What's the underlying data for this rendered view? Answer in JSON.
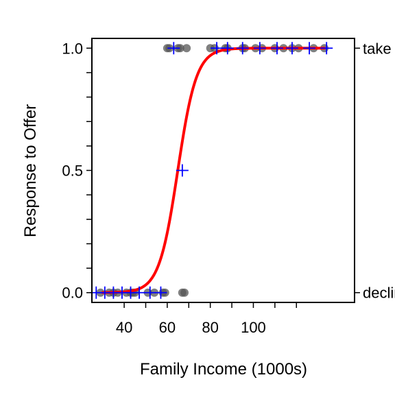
{
  "chart_data": {
    "type": "scatter",
    "xlabel": "Family Income (1000s)",
    "ylabel": "Response to Offer",
    "xlim": [
      25,
      147
    ],
    "ylim": [
      -0.04,
      1.04
    ],
    "x_ticks": [
      40,
      50,
      60,
      70,
      80,
      90,
      100,
      110,
      120
    ],
    "x_tick_labels": [
      {
        "value": 40,
        "label": "40"
      },
      {
        "value": 60,
        "label": "60"
      },
      {
        "value": 80,
        "label": "80"
      },
      {
        "value": 100,
        "label": "100"
      }
    ],
    "y_ticks": [
      0.0,
      0.1,
      0.2,
      0.3,
      0.4,
      0.5,
      0.6,
      0.7,
      0.8,
      0.9,
      1.0
    ],
    "y_tick_labels": [
      {
        "value": 0.0,
        "label": "0.0"
      },
      {
        "value": 0.5,
        "label": "0.5"
      },
      {
        "value": 1.0,
        "label": "1.0"
      }
    ],
    "right_labels": [
      {
        "value": 1.0,
        "label": "take"
      },
      {
        "value": 0.0,
        "label": "decline"
      }
    ],
    "points": [
      {
        "x": 29,
        "y": 0
      },
      {
        "x": 33,
        "y": 0
      },
      {
        "x": 35,
        "y": 0
      },
      {
        "x": 37,
        "y": 0
      },
      {
        "x": 41,
        "y": 0
      },
      {
        "x": 43,
        "y": 0
      },
      {
        "x": 44,
        "y": 0
      },
      {
        "x": 45,
        "y": 0
      },
      {
        "x": 51,
        "y": 0
      },
      {
        "x": 54,
        "y": 0
      },
      {
        "x": 58,
        "y": 0
      },
      {
        "x": 59,
        "y": 0
      },
      {
        "x": 67,
        "y": 0
      },
      {
        "x": 68,
        "y": 0
      },
      {
        "x": 60,
        "y": 1
      },
      {
        "x": 61,
        "y": 1
      },
      {
        "x": 65,
        "y": 1
      },
      {
        "x": 66,
        "y": 1
      },
      {
        "x": 69,
        "y": 1
      },
      {
        "x": 80,
        "y": 1
      },
      {
        "x": 82,
        "y": 1
      },
      {
        "x": 87,
        "y": 1
      },
      {
        "x": 88,
        "y": 1
      },
      {
        "x": 95,
        "y": 1
      },
      {
        "x": 96,
        "y": 1
      },
      {
        "x": 101,
        "y": 1
      },
      {
        "x": 104,
        "y": 1
      },
      {
        "x": 110,
        "y": 1
      },
      {
        "x": 114,
        "y": 1
      },
      {
        "x": 118,
        "y": 1
      },
      {
        "x": 121,
        "y": 1
      },
      {
        "x": 128,
        "y": 1
      },
      {
        "x": 133,
        "y": 1
      }
    ],
    "crosses": [
      {
        "x": 27,
        "y": 0
      },
      {
        "x": 31,
        "y": 0
      },
      {
        "x": 35,
        "y": 0
      },
      {
        "x": 39,
        "y": 0
      },
      {
        "x": 43,
        "y": 0
      },
      {
        "x": 47,
        "y": 0
      },
      {
        "x": 52,
        "y": 0
      },
      {
        "x": 57,
        "y": 0
      },
      {
        "x": 67,
        "y": 0.5
      },
      {
        "x": 63,
        "y": 1
      },
      {
        "x": 83,
        "y": 1
      },
      {
        "x": 88,
        "y": 1
      },
      {
        "x": 95,
        "y": 1
      },
      {
        "x": 103,
        "y": 1
      },
      {
        "x": 111,
        "y": 1
      },
      {
        "x": 118,
        "y": 1
      },
      {
        "x": 126,
        "y": 1
      },
      {
        "x": 134,
        "y": 1
      }
    ],
    "fit_curve": {
      "type": "logistic",
      "midpoint": 64.9,
      "rate": 0.23,
      "x_start": 30,
      "x_end": 133,
      "color": "#ff0000"
    },
    "colors": {
      "points": "#555555",
      "crosses": "#0000ff",
      "curve": "#ff0000"
    }
  }
}
